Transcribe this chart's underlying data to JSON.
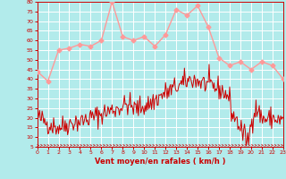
{
  "background_color": "#b2ebeb",
  "grid_color": "#ffffff",
  "line_color_wind": "#cc0000",
  "line_color_gust": "#ff9999",
  "marker_color_gust": "#ff9999",
  "xlabel": "Vent moyen/en rafales ( km/h )",
  "xlabel_color": "#cc0000",
  "tick_color": "#cc0000",
  "ylim": [
    5,
    80
  ],
  "yticks": [
    5,
    10,
    15,
    20,
    25,
    30,
    35,
    40,
    45,
    50,
    55,
    60,
    65,
    70,
    75,
    80
  ],
  "xlim": [
    0,
    23
  ],
  "xticks": [
    0,
    1,
    2,
    3,
    4,
    5,
    6,
    7,
    8,
    9,
    10,
    11,
    12,
    13,
    14,
    15,
    16,
    17,
    18,
    19,
    20,
    21,
    22,
    23
  ],
  "gust_x": [
    0,
    1,
    2,
    3,
    4,
    5,
    6,
    7,
    8,
    9,
    10,
    11,
    12,
    13,
    14,
    15,
    16,
    17,
    18,
    19,
    20,
    21,
    22,
    23
  ],
  "gust_y": [
    44,
    39,
    55,
    56,
    58,
    57,
    60,
    80,
    62,
    60,
    62,
    57,
    63,
    76,
    73,
    78,
    67,
    51,
    47,
    49,
    45,
    49,
    47,
    40
  ],
  "wind_base_x": [
    0,
    0.5,
    1,
    1.5,
    2,
    2.5,
    3,
    3.5,
    4,
    4.5,
    5,
    5.5,
    6,
    6.5,
    7,
    7.5,
    8,
    8.5,
    9,
    9.5,
    10,
    10.5,
    11,
    11.5,
    12,
    12.5,
    13,
    13.5,
    14,
    14.5,
    15,
    15.5,
    16,
    16.5,
    17,
    17.5,
    18,
    18.2,
    18.5,
    19,
    19.2,
    19.5,
    19.8,
    20,
    20.2,
    20.5,
    20.8,
    21,
    21.5,
    22,
    22.5,
    23
  ],
  "wind_base_y": [
    20,
    19,
    17,
    16,
    15,
    16,
    17,
    18,
    18,
    19,
    20,
    21,
    22,
    23,
    24,
    25,
    26,
    27,
    25,
    25,
    26,
    27,
    29,
    31,
    33,
    34,
    36,
    37,
    39,
    40,
    39,
    38,
    37,
    36,
    35,
    33,
    30,
    22,
    20,
    15,
    12,
    10,
    8,
    18,
    22,
    25,
    22,
    20,
    19,
    20,
    19,
    18
  ],
  "noise_seed": 42,
  "noise_scale": 2.8,
  "wind_npoints": 300
}
